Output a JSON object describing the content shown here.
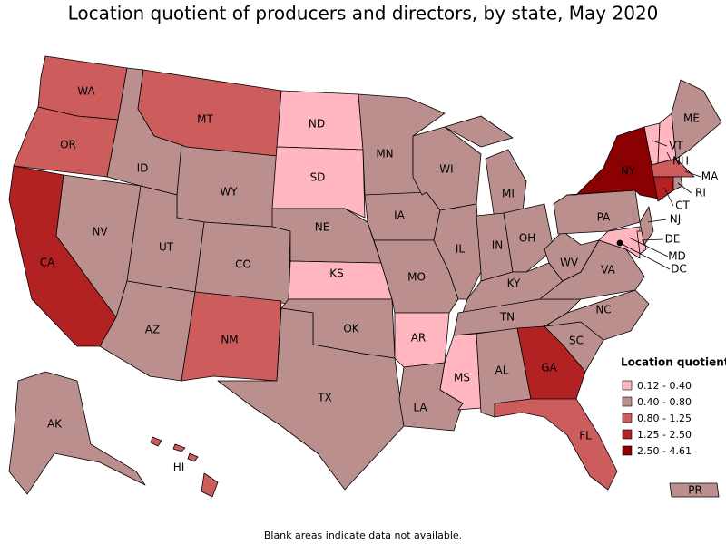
{
  "title": "Location quotient of producers and directors, by state, May 2020",
  "legend": {
    "title": "Location quotient",
    "items": [
      {
        "label": "0.12 - 0.40",
        "color": "#ffb6c1"
      },
      {
        "label": "0.40 - 0.80",
        "color": "#bc8f8f"
      },
      {
        "label": "0.80 - 1.25",
        "color": "#cd5c5c"
      },
      {
        "label": "1.25 - 2.50",
        "color": "#b22222"
      },
      {
        "label": "2.50 - 4.61",
        "color": "#8b0000"
      }
    ]
  },
  "states": [
    {
      "name": "WA",
      "bin": 2
    },
    {
      "name": "OR",
      "bin": 2
    },
    {
      "name": "CA",
      "bin": 3
    },
    {
      "name": "NV",
      "bin": 1
    },
    {
      "name": "ID",
      "bin": 1
    },
    {
      "name": "MT",
      "bin": 2
    },
    {
      "name": "WY",
      "bin": 1
    },
    {
      "name": "UT",
      "bin": 1
    },
    {
      "name": "CO",
      "bin": 1
    },
    {
      "name": "AZ",
      "bin": 1
    },
    {
      "name": "NM",
      "bin": 2
    },
    {
      "name": "ND",
      "bin": 0
    },
    {
      "name": "SD",
      "bin": 0
    },
    {
      "name": "NE",
      "bin": 1
    },
    {
      "name": "KS",
      "bin": 0
    },
    {
      "name": "OK",
      "bin": 1
    },
    {
      "name": "TX",
      "bin": 1
    },
    {
      "name": "MN",
      "bin": 1
    },
    {
      "name": "IA",
      "bin": 1
    },
    {
      "name": "MO",
      "bin": 1
    },
    {
      "name": "AR",
      "bin": 0
    },
    {
      "name": "LA",
      "bin": 1
    },
    {
      "name": "WI",
      "bin": 1
    },
    {
      "name": "IL",
      "bin": 1
    },
    {
      "name": "MI",
      "bin": 1
    },
    {
      "name": "IN",
      "bin": 1
    },
    {
      "name": "OH",
      "bin": 1
    },
    {
      "name": "KY",
      "bin": 1
    },
    {
      "name": "TN",
      "bin": 1
    },
    {
      "name": "MS",
      "bin": 0
    },
    {
      "name": "AL",
      "bin": 1
    },
    {
      "name": "GA",
      "bin": 3
    },
    {
      "name": "FL",
      "bin": 2
    },
    {
      "name": "SC",
      "bin": 1
    },
    {
      "name": "NC",
      "bin": 1
    },
    {
      "name": "VA",
      "bin": 1
    },
    {
      "name": "WV",
      "bin": 1
    },
    {
      "name": "PA",
      "bin": 1
    },
    {
      "name": "NY",
      "bin": 4
    },
    {
      "name": "MD",
      "bin": 0
    },
    {
      "name": "DE",
      "bin": 0
    },
    {
      "name": "NJ",
      "bin": 1
    },
    {
      "name": "VT",
      "bin": 0
    },
    {
      "name": "NH",
      "bin": 0
    },
    {
      "name": "ME",
      "bin": 1
    },
    {
      "name": "MA",
      "bin": 2
    },
    {
      "name": "CT",
      "bin": 3
    },
    {
      "name": "RI",
      "bin": 1
    },
    {
      "name": "DC",
      "bin": 1
    },
    {
      "name": "AK",
      "bin": 1
    },
    {
      "name": "HI",
      "bin": 2
    },
    {
      "name": "PR",
      "bin": 1
    }
  ],
  "note": "Blank areas indicate data not available."
}
